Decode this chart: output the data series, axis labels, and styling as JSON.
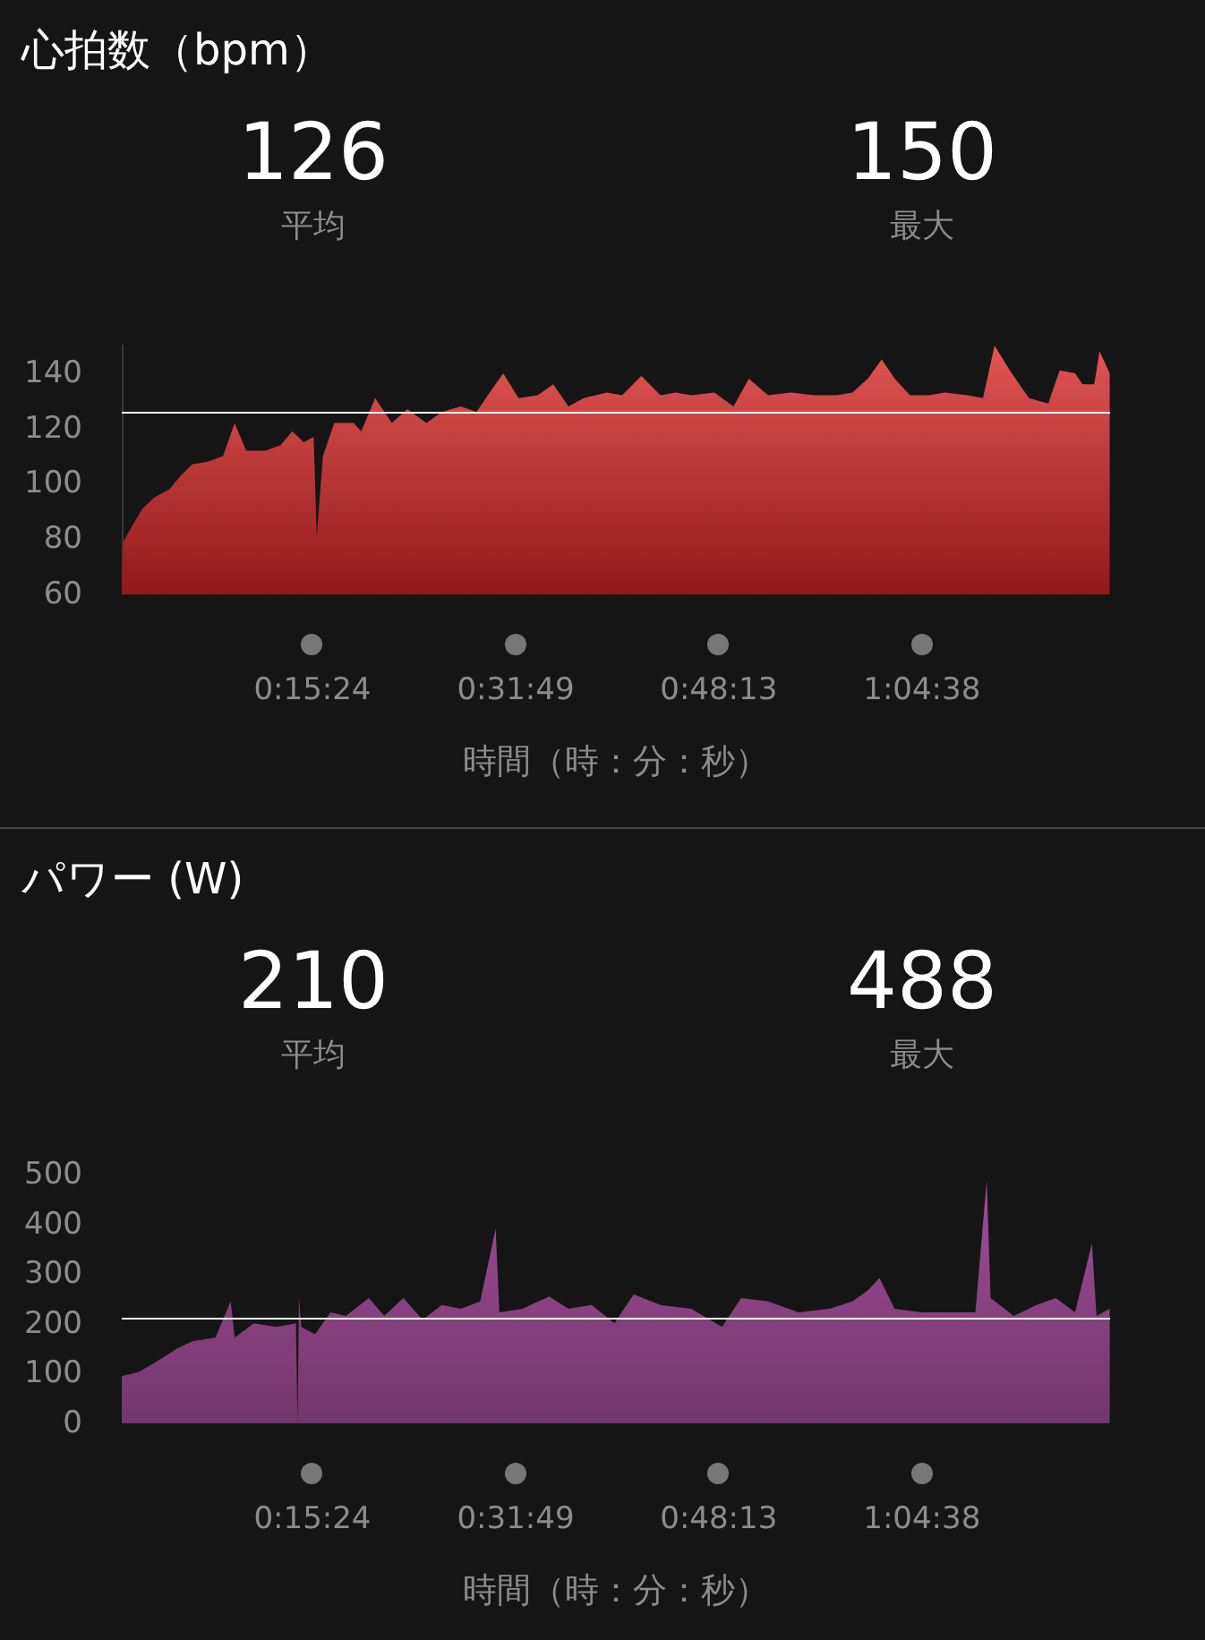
{
  "chart_data": [
    {
      "type": "area",
      "title": "心拍数（bpm）",
      "xlabel": "時間（時：分：秒）",
      "annotations": [
        "126",
        "平均",
        "150",
        "最大"
      ],
      "x": [
        0,
        7,
        45,
        100,
        156,
        231,
        286,
        342,
        417,
        491,
        547,
        603,
        696,
        770,
        826,
        882,
        930,
        945,
        975,
        1030,
        1123,
        1161,
        1228,
        1309,
        1384,
        1477,
        1551,
        1644,
        1719,
        1774,
        1849,
        1923,
        2016,
        2091,
        2165,
        2239,
        2351,
        2425,
        2518,
        2611,
        2686,
        2760,
        2872,
        2965,
        3039,
        3132,
        3244,
        3355,
        3467,
        3541,
        3616,
        3683,
        3746,
        3820,
        3913,
        3988,
        4099,
        4174,
        4230,
        4304,
        4397,
        4490,
        4546,
        4620,
        4657,
        4713,
        4739,
        4788
      ],
      "series": [
        {
          "color": "#e25555",
          "values": [
            65,
            79,
            84,
            91,
            95,
            98,
            103,
            107,
            108,
            110,
            122,
            112,
            112,
            114,
            119,
            115,
            117,
            81,
            110,
            122,
            122,
            119,
            131,
            122,
            127,
            122,
            126,
            128,
            126,
            132,
            140,
            131,
            132,
            136,
            128,
            131,
            133,
            132,
            139,
            132,
            133,
            132,
            133,
            128,
            138,
            132,
            133,
            132,
            132,
            133,
            138,
            145,
            138,
            132,
            132,
            133,
            132,
            131,
            150,
            141,
            131,
            129,
            141,
            140,
            136,
            136,
            148,
            140
          ]
        }
      ],
      "xlim": [
        0,
        4790
      ],
      "xticks": [
        {
          "value": 924,
          "label": "0:15:24"
        },
        {
          "value": 1909,
          "label": "0:31:49"
        },
        {
          "value": 2893,
          "label": "0:48:13"
        },
        {
          "value": 3878,
          "label": "1:04:38"
        }
      ],
      "ylim": [
        60,
        150
      ],
      "yticks": [
        60,
        80,
        100,
        120,
        140
      ],
      "ref_lines": [
        {
          "axis": "y",
          "value": 126,
          "color": "#ffffff"
        }
      ]
    },
    {
      "type": "area",
      "title": "パワー (W)",
      "xlabel": "時間（時：分：秒）",
      "annotations": [
        "210",
        "平均",
        "488",
        "最大"
      ],
      "x": [
        0,
        82,
        156,
        268,
        342,
        454,
        528,
        547,
        640,
        751,
        844,
        852,
        859,
        870,
        937,
        1012,
        1086,
        1198,
        1272,
        1365,
        1458,
        1551,
        1644,
        1737,
        1812,
        1830,
        1942,
        2072,
        2165,
        2277,
        2388,
        2481,
        2611,
        2760,
        2909,
        3002,
        3132,
        3281,
        3430,
        3541,
        3616,
        3672,
        3746,
        3876,
        4025,
        4137,
        4192,
        4211,
        4323,
        4434,
        4527,
        4620,
        4702,
        4724,
        4788
      ],
      "series": [
        {
          "color": "#a04c98",
          "values": [
            95,
            103,
            121,
            150,
            165,
            172,
            245,
            172,
            201,
            194,
            201,
            4,
            252,
            194,
            179,
            223,
            216,
            252,
            216,
            252,
            208,
            238,
            230,
            245,
            391,
            223,
            230,
            255,
            230,
            238,
            201,
            259,
            238,
            230,
            194,
            252,
            245,
            223,
            230,
            245,
            267,
            292,
            230,
            223,
            223,
            223,
            488,
            252,
            216,
            238,
            252,
            223,
            362,
            216,
            230
          ]
        }
      ],
      "xlim": [
        0,
        4790
      ],
      "xticks": [
        {
          "value": 924,
          "label": "0:15:24"
        },
        {
          "value": 1909,
          "label": "0:31:49"
        },
        {
          "value": 2893,
          "label": "0:48:13"
        },
        {
          "value": 3878,
          "label": "1:04:38"
        }
      ],
      "ylim": [
        0,
        500
      ],
      "yticks": [
        0,
        100,
        200,
        300,
        400,
        500
      ],
      "ref_lines": [
        {
          "axis": "y",
          "value": 210,
          "color": "#ffffff"
        }
      ]
    }
  ]
}
